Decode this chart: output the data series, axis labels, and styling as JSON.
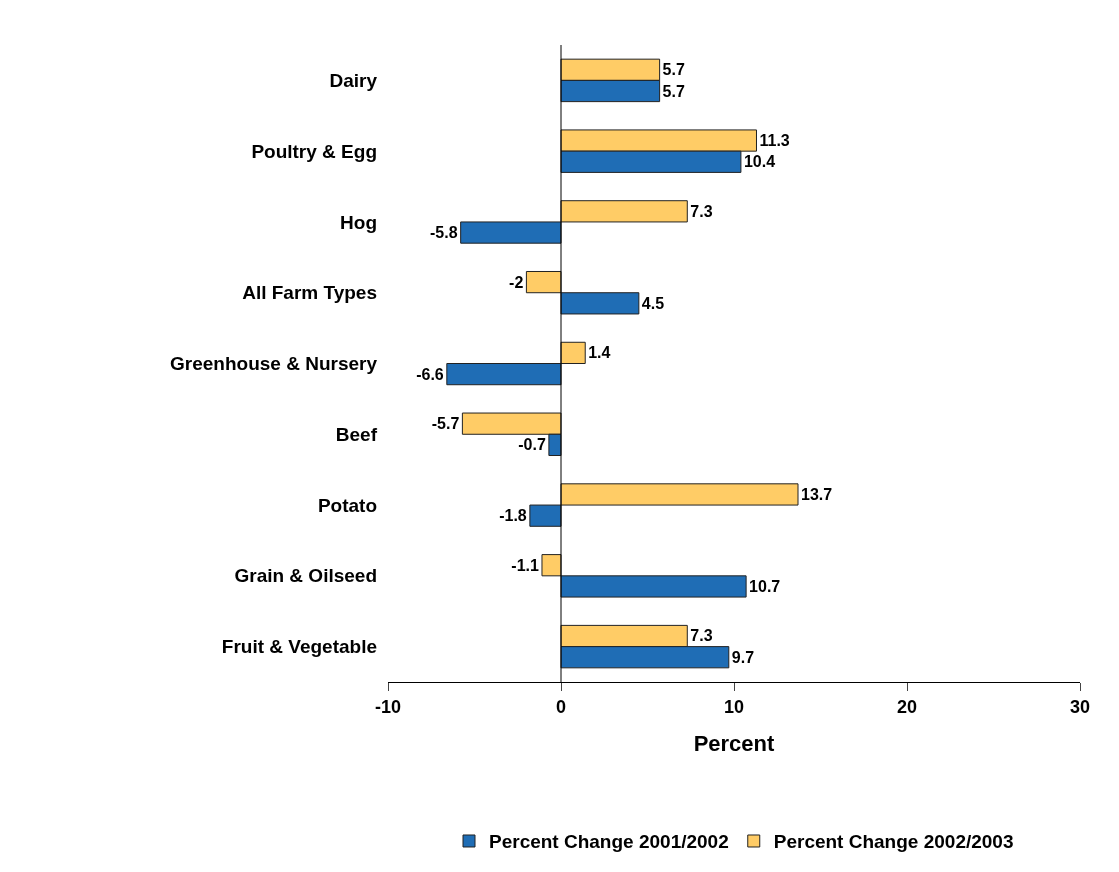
{
  "chart_data": {
    "type": "bar",
    "orientation": "horizontal",
    "xlabel": "Percent",
    "categories": [
      "Dairy",
      "Poultry & Egg",
      "Hog",
      "All Farm Types",
      "Greenhouse & Nursery",
      "Beef",
      "Potato",
      "Grain & Oilseed",
      "Fruit & Vegetable"
    ],
    "series": [
      {
        "name": "Percent Change 2001/2002",
        "color": "#1f6db5",
        "values": [
          5.7,
          10.4,
          -5.8,
          4.5,
          -6.6,
          -0.7,
          -1.8,
          10.7,
          9.7
        ]
      },
      {
        "name": "Percent Change 2002/2003",
        "color": "#ffcc66",
        "values": [
          5.7,
          11.3,
          7.3,
          -2,
          1.4,
          -5.7,
          13.7,
          -1.1,
          7.3
        ]
      }
    ],
    "xlim": [
      -10,
      30
    ],
    "xticks": [
      -10,
      0,
      10,
      20,
      30
    ],
    "grid": false,
    "ref_lines": [
      {
        "axis": "x",
        "value": 0
      }
    ],
    "legend": "bottom",
    "data_labels": true
  }
}
